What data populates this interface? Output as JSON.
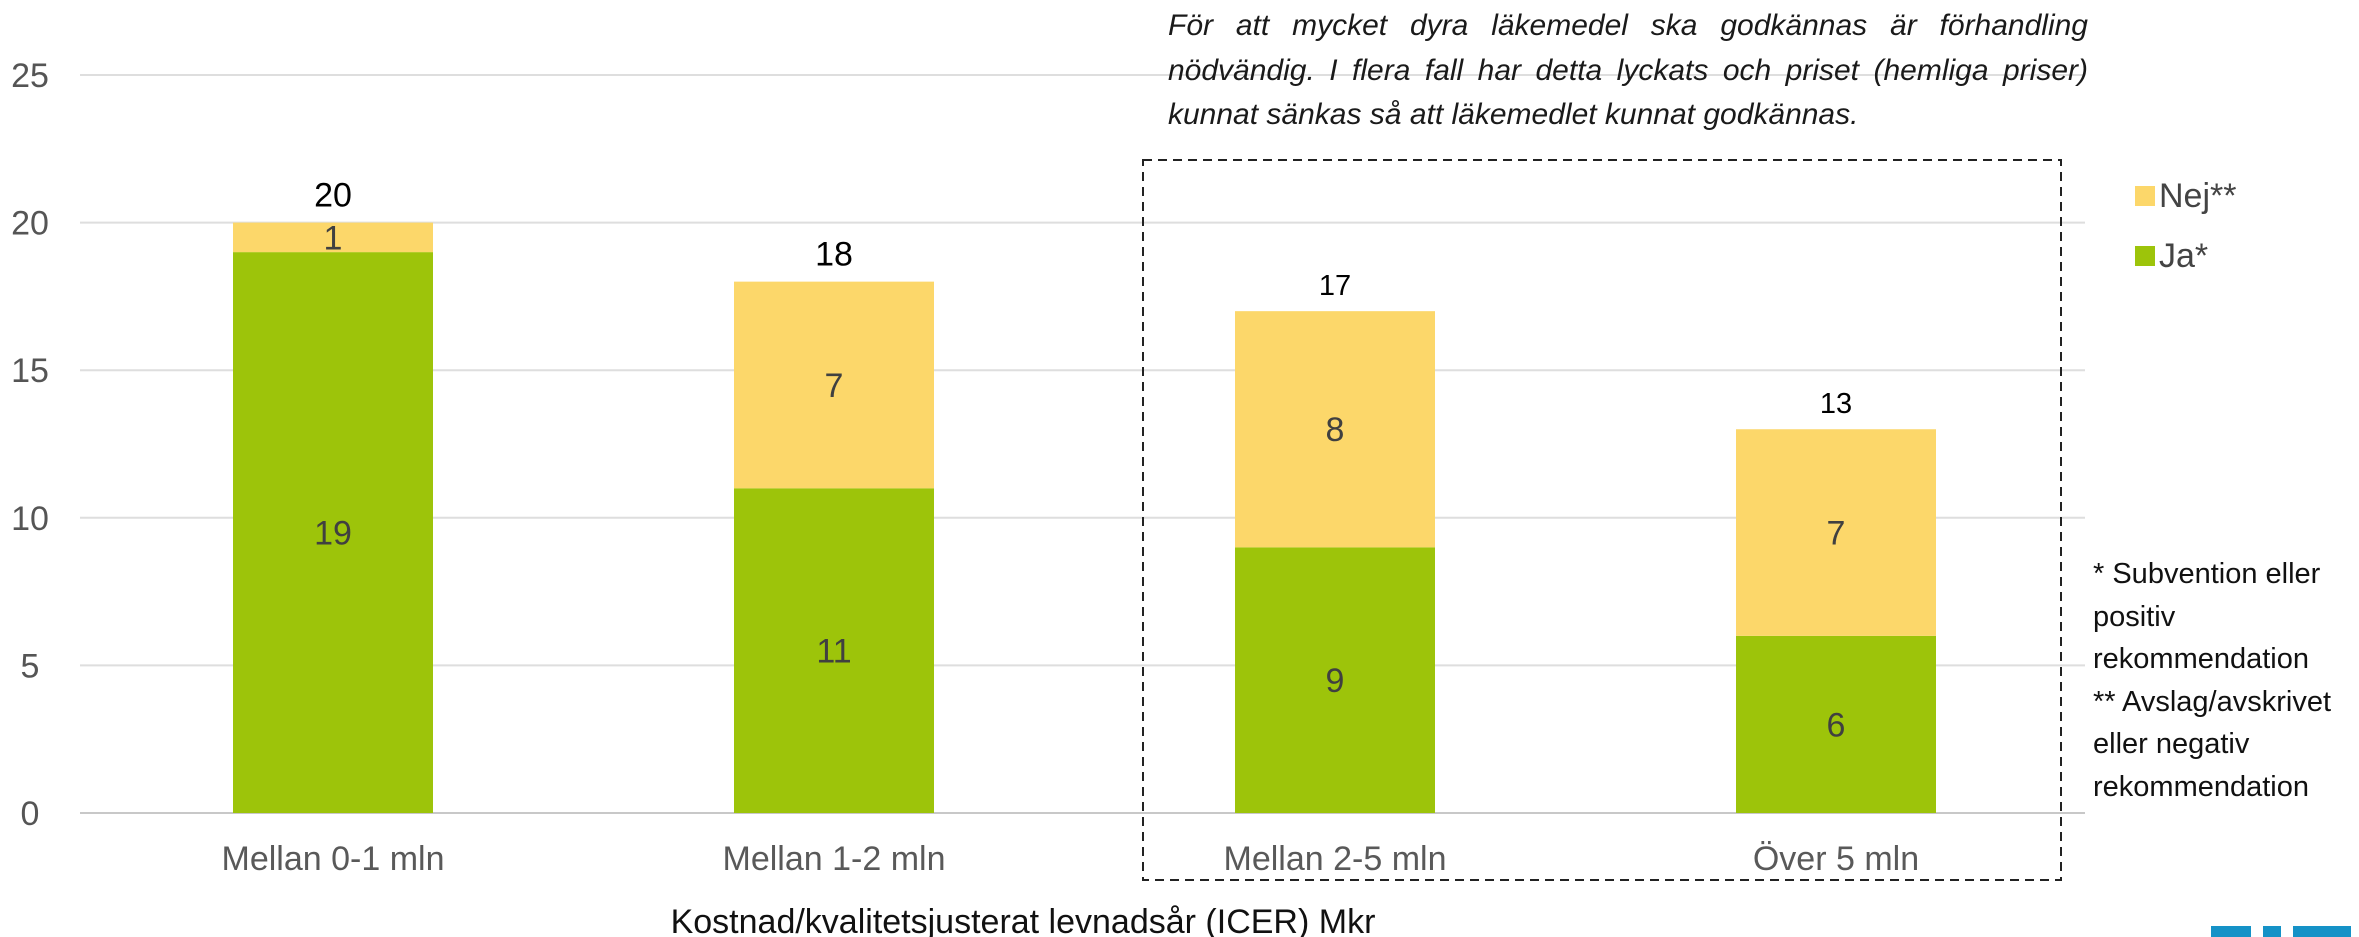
{
  "chart_data": {
    "type": "bar",
    "stacked": true,
    "categories": [
      "Mellan 0-1 mln",
      "Mellan 1-2 mln",
      "Mellan 2-5 mln",
      "Över 5 mln"
    ],
    "series": [
      {
        "name": "Ja*",
        "color": "#9dc40a",
        "values": [
          19,
          11,
          9,
          6
        ]
      },
      {
        "name": "Nej**",
        "color": "#fcd76a",
        "values": [
          1,
          7,
          8,
          7
        ]
      }
    ],
    "totals": [
      20,
      18,
      17,
      13
    ],
    "xlabel": "Kostnad/kvalitetsjusterat levnadsår (ICER) Mkr",
    "ylabel": "",
    "ylim": [
      0,
      25
    ],
    "yticks": [
      0,
      5,
      10,
      15,
      20,
      25
    ],
    "grid": true,
    "legend_position": "right",
    "highlight_box_categories": [
      "Mellan 2-5 mln",
      "Över 5 mln"
    ]
  },
  "annotation": "För att mycket dyra läkemedel ska godkännas är förhandling nödvändig. I flera fall har detta lyckats och priset (hemliga priser) kunnat sänkas så att läkemedlet kunnat godkännas.",
  "footnotes": [
    "* Subvention eller positiv rekommendation",
    "** Avslag/avskrivet eller negativ rekommendation"
  ],
  "legend": [
    {
      "label": "Nej**",
      "color": "#fcd76a"
    },
    {
      "label": "Ja*",
      "color": "#9dc40a"
    }
  ],
  "logo": {
    "color": "#1592c7"
  }
}
